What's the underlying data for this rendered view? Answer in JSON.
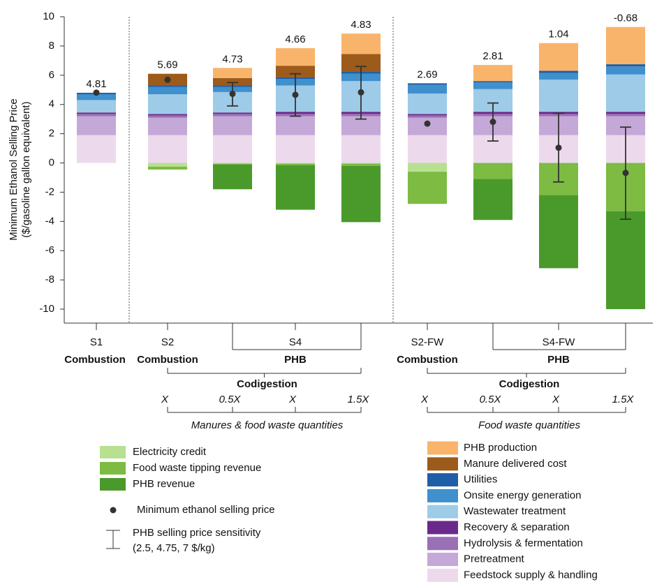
{
  "chart_data": {
    "type": "bar",
    "stacked": true,
    "ylabel": [
      "Minimum Ethanol Selling Price",
      "($/gasoline gallon equivalent)"
    ],
    "categories": [
      "S1",
      "S2",
      null,
      "S4",
      null,
      "S2-FW",
      null,
      "S4-FW",
      null
    ],
    "configurations": [
      "Combustion",
      "Combustion",
      null,
      "PHB",
      null,
      "Combustion",
      null,
      "PHB",
      null
    ],
    "quantities": [
      null,
      "X",
      "0.5X",
      "X",
      "1.5X",
      "X",
      "0.5X",
      "X",
      "1.5X"
    ],
    "groups": [
      {
        "label": "Codigestion",
        "quantity_label": "Manures & food waste quantities"
      },
      {
        "label": "Codigestion",
        "quantity_label": "Food waste quantities"
      }
    ],
    "ylim": [
      -10,
      10
    ],
    "yticks": [
      -10,
      -8,
      -6,
      -4,
      -2,
      0,
      2,
      4,
      6,
      8,
      10
    ],
    "series": [
      {
        "name": "Feedstock supply & handling",
        "color": "#ecdaec",
        "values": [
          1.9,
          1.9,
          1.9,
          1.9,
          1.9,
          1.9,
          1.9,
          1.9,
          1.9
        ]
      },
      {
        "name": "Pretreatment",
        "color": "#c4a8d7",
        "values": [
          1.3,
          1.2,
          1.3,
          1.3,
          1.3,
          1.2,
          1.3,
          1.3,
          1.3
        ]
      },
      {
        "name": "Hydrolysis & fermentation",
        "color": "#9a70b5",
        "values": [
          0.15,
          0.15,
          0.15,
          0.15,
          0.15,
          0.15,
          0.15,
          0.15,
          0.15
        ]
      },
      {
        "name": "Recovery & separation",
        "color": "#6b2a8b",
        "values": [
          0.1,
          0.1,
          0.1,
          0.15,
          0.15,
          0.1,
          0.15,
          0.15,
          0.15
        ]
      },
      {
        "name": "Wastewater treatment",
        "color": "#9dcbe8",
        "values": [
          0.85,
          1.35,
          1.4,
          1.8,
          2.1,
          1.4,
          1.55,
          2.2,
          2.55
        ]
      },
      {
        "name": "Onsite energy generation",
        "color": "#3f90cc",
        "values": [
          0.4,
          0.5,
          0.35,
          0.45,
          0.5,
          0.6,
          0.45,
          0.45,
          0.55
        ]
      },
      {
        "name": "Utilities",
        "color": "#1f5fa8",
        "values": [
          0.1,
          0.1,
          0.1,
          0.1,
          0.15,
          0.1,
          0.1,
          0.15,
          0.15
        ]
      },
      {
        "name": "Manure delivered cost",
        "color": "#9c5b1a",
        "values": [
          0,
          0.8,
          0.5,
          0.8,
          1.2,
          0,
          0,
          0,
          0
        ]
      },
      {
        "name": "PHB production",
        "color": "#f9b46b",
        "values": [
          0,
          0,
          0.7,
          1.2,
          1.4,
          0,
          1.1,
          1.9,
          2.55
        ]
      },
      {
        "name": "Electricity credit",
        "color": "#b8e091",
        "values": [
          0,
          -0.25,
          -0.05,
          -0.05,
          -0.05,
          -0.6,
          0,
          0,
          0
        ]
      },
      {
        "name": "Food waste tipping revenue",
        "color": "#7dbb43",
        "values": [
          0,
          -0.2,
          -0.05,
          -0.1,
          -0.15,
          -2.2,
          -1.1,
          -2.2,
          -3.3
        ]
      },
      {
        "name": "PHB revenue",
        "color": "#4a9a2b",
        "values": [
          0,
          0,
          -1.7,
          -3.05,
          -3.85,
          0,
          -2.8,
          -5.0,
          -6.7
        ]
      }
    ],
    "mesp": [
      4.81,
      5.69,
      4.73,
      4.66,
      4.83,
      2.69,
      2.81,
      1.04,
      -0.68
    ],
    "sensitivity_low": [
      null,
      null,
      3.9,
      3.2,
      3.0,
      null,
      1.5,
      -1.3,
      -3.85
    ],
    "sensitivity_high": [
      null,
      null,
      5.5,
      6.1,
      6.6,
      null,
      4.1,
      3.4,
      2.45
    ],
    "legend": {
      "mesp": "Minimum ethanol selling price",
      "sensitivity": [
        "PHB selling price sensitivity",
        "(2.5, 4.75, 7 $/kg)"
      ]
    }
  }
}
